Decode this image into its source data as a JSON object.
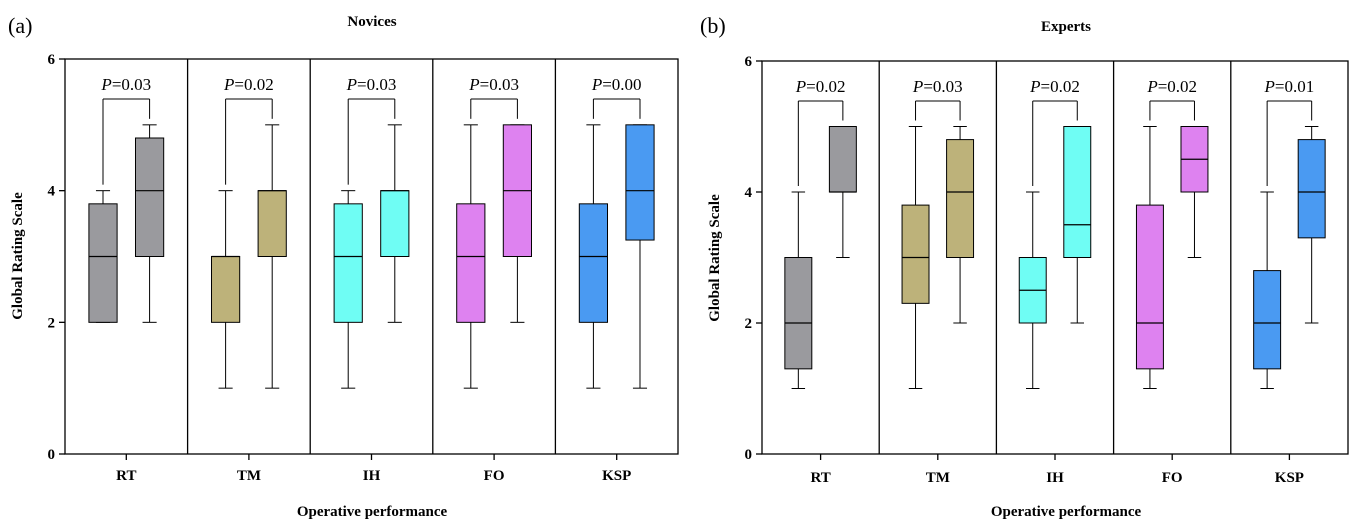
{
  "chart_data": [
    {
      "panel_label": "(a)",
      "type": "box",
      "title": "Novices",
      "xlabel": "Operative performance",
      "ylabel": "Global Rating Scale",
      "ylim": [
        0,
        6
      ],
      "yticks": [
        "0",
        "2",
        "4",
        "6"
      ],
      "categories": [
        "RT",
        "TM",
        "IH",
        "FO",
        "KSP"
      ],
      "groups": [
        {
          "category": "RT",
          "p_text": "=0.03",
          "color": "#9a9a9e",
          "boxes": [
            {
              "min": 2,
              "q1": 2,
              "median": 3,
              "q3": 3.8,
              "max": 4
            },
            {
              "min": 2,
              "q1": 3,
              "median": 4,
              "q3": 4.8,
              "max": 5
            }
          ]
        },
        {
          "category": "TM",
          "p_text": "=0.02",
          "color": "#bdb27a",
          "boxes": [
            {
              "min": 1,
              "q1": 2,
              "median": 3,
              "q3": 3,
              "max": 4
            },
            {
              "min": 1,
              "q1": 3,
              "median": 4,
              "q3": 4,
              "max": 5
            }
          ]
        },
        {
          "category": "IH",
          "p_text": "=0.03",
          "color": "#6ffdf4",
          "boxes": [
            {
              "min": 1,
              "q1": 2,
              "median": 3,
              "q3": 3.8,
              "max": 4
            },
            {
              "min": 2,
              "q1": 3,
              "median": 4,
              "q3": 4,
              "max": 5
            }
          ]
        },
        {
          "category": "FO",
          "p_text": "=0.03",
          "color": "#de82f0",
          "boxes": [
            {
              "min": 1,
              "q1": 2,
              "median": 3,
              "q3": 3.8,
              "max": 5
            },
            {
              "min": 2,
              "q1": 3,
              "median": 4,
              "q3": 5,
              "max": 5
            }
          ]
        },
        {
          "category": "KSP",
          "p_text": "=0.00",
          "color": "#4a9af2",
          "boxes": [
            {
              "min": 1,
              "q1": 2,
              "median": 3,
              "q3": 3.8,
              "max": 5
            },
            {
              "min": 1,
              "q1": 3.25,
              "median": 4,
              "q3": 5,
              "max": 5
            }
          ]
        }
      ]
    },
    {
      "panel_label": "(b)",
      "type": "box",
      "title": "Experts",
      "xlabel": "Operative performance",
      "ylabel": "Global Rating Scale",
      "ylim": [
        0,
        6
      ],
      "yticks": [
        "0",
        "2",
        "4",
        "6"
      ],
      "categories": [
        "RT",
        "TM",
        "IH",
        "FO",
        "KSP"
      ],
      "groups": [
        {
          "category": "RT",
          "p_text": "=0.02",
          "color": "#9a9a9e",
          "boxes": [
            {
              "min": 1,
              "q1": 1.3,
              "median": 2,
              "q3": 3,
              "max": 4
            },
            {
              "min": 3,
              "q1": 4,
              "median": 4,
              "q3": 5,
              "max": 5
            }
          ]
        },
        {
          "category": "TM",
          "p_text": "=0.03",
          "color": "#bdb27a",
          "boxes": [
            {
              "min": 1,
              "q1": 2.3,
              "median": 3,
              "q3": 3.8,
              "max": 5
            },
            {
              "min": 2,
              "q1": 3,
              "median": 4,
              "q3": 4.8,
              "max": 5
            }
          ]
        },
        {
          "category": "IH",
          "p_text": "=0.02",
          "color": "#6ffdf4",
          "boxes": [
            {
              "min": 1,
              "q1": 2,
              "median": 2.5,
              "q3": 3,
              "max": 4
            },
            {
              "min": 2,
              "q1": 3,
              "median": 3.5,
              "q3": 5,
              "max": 5
            }
          ]
        },
        {
          "category": "FO",
          "p_text": "=0.02",
          "color": "#de82f0",
          "boxes": [
            {
              "min": 1,
              "q1": 1.3,
              "median": 2,
              "q3": 3.8,
              "max": 5
            },
            {
              "min": 3,
              "q1": 4,
              "median": 4.5,
              "q3": 5,
              "max": 5
            }
          ]
        },
        {
          "category": "KSP",
          "p_text": "=0.01",
          "color": "#4a9af2",
          "boxes": [
            {
              "min": 1,
              "q1": 1.3,
              "median": 2,
              "q3": 2.8,
              "max": 4
            },
            {
              "min": 2,
              "q1": 3.3,
              "median": 4,
              "q3": 4.8,
              "max": 5
            }
          ]
        }
      ]
    }
  ]
}
